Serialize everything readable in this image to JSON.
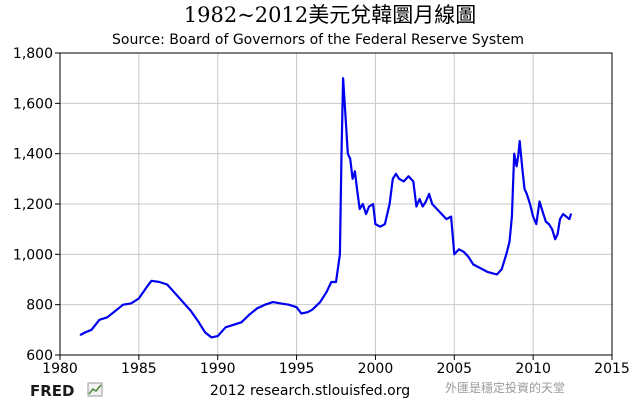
{
  "chart_data": {
    "type": "line",
    "title": "1982~2012美元兌韓圜月線圖",
    "subtitle": "Source: Board of Governors of the Federal Reserve System",
    "xlabel": "",
    "ylabel": "",
    "xlim": [
      1980,
      2015
    ],
    "ylim": [
      600,
      1800
    ],
    "x_ticks": [
      "1980",
      "1985",
      "1990",
      "1995",
      "2000",
      "2005",
      "2010",
      "2015"
    ],
    "y_ticks": [
      "600",
      "800",
      "1,000",
      "1,200",
      "1,400",
      "1,600",
      "1,800"
    ],
    "grid": true,
    "legend": "none",
    "series": [
      {
        "color": "#0000ee",
        "x": [
          1981.3,
          1981.6,
          1982.0,
          1982.5,
          1983.0,
          1983.5,
          1984.0,
          1984.5,
          1985.0,
          1985.5,
          1985.8,
          1986.3,
          1986.8,
          1987.3,
          1987.8,
          1988.3,
          1988.8,
          1989.2,
          1989.6,
          1990.0,
          1990.5,
          1991.0,
          1991.5,
          1992.0,
          1992.5,
          1993.0,
          1993.5,
          1994.0,
          1994.5,
          1995.0,
          1995.3,
          1995.7,
          1996.0,
          1996.5,
          1996.9,
          1997.2,
          1997.5,
          1997.75,
          1997.85,
          1997.95,
          1998.0,
          1998.1,
          1998.25,
          1998.4,
          1998.55,
          1998.7,
          1998.85,
          1999.0,
          1999.2,
          1999.4,
          1999.6,
          1999.85,
          2000.0,
          2000.3,
          2000.6,
          2000.9,
          2001.1,
          2001.3,
          2001.5,
          2001.8,
          2002.1,
          2002.4,
          2002.6,
          2002.8,
          2003.0,
          2003.2,
          2003.4,
          2003.6,
          2003.9,
          2004.2,
          2004.5,
          2004.8,
          2005.0,
          2005.3,
          2005.6,
          2005.9,
          2006.2,
          2006.5,
          2006.8,
          2007.1,
          2007.4,
          2007.7,
          2008.0,
          2008.3,
          2008.5,
          2008.65,
          2008.8,
          2008.95,
          2009.05,
          2009.15,
          2009.3,
          2009.45,
          2009.6,
          2009.8,
          2010.0,
          2010.2,
          2010.4,
          2010.6,
          2010.8,
          2011.0,
          2011.2,
          2011.4,
          2011.55,
          2011.7,
          2011.9,
          2012.1,
          2012.3,
          2012.4
        ],
        "values": [
          680,
          690,
          700,
          740,
          750,
          775,
          800,
          805,
          825,
          870,
          895,
          890,
          880,
          845,
          810,
          775,
          730,
          690,
          670,
          675,
          710,
          720,
          730,
          760,
          785,
          800,
          810,
          805,
          800,
          790,
          765,
          770,
          780,
          810,
          850,
          890,
          890,
          1000,
          1400,
          1700,
          1650,
          1550,
          1400,
          1380,
          1300,
          1330,
          1250,
          1180,
          1200,
          1160,
          1190,
          1200,
          1120,
          1110,
          1120,
          1200,
          1300,
          1320,
          1300,
          1290,
          1310,
          1290,
          1190,
          1220,
          1190,
          1210,
          1240,
          1200,
          1180,
          1160,
          1140,
          1150,
          1000,
          1020,
          1010,
          990,
          960,
          950,
          940,
          930,
          925,
          920,
          940,
          1000,
          1050,
          1150,
          1400,
          1350,
          1390,
          1450,
          1350,
          1260,
          1240,
          1200,
          1150,
          1120,
          1210,
          1170,
          1130,
          1120,
          1100,
          1060,
          1080,
          1140,
          1160,
          1150,
          1140,
          1160
        ]
      }
    ]
  },
  "footer": {
    "logo_text": "FRED",
    "source_text": "2012 research.stlouisfed.org",
    "watermark": "外匯是穩定投資的天堂"
  }
}
